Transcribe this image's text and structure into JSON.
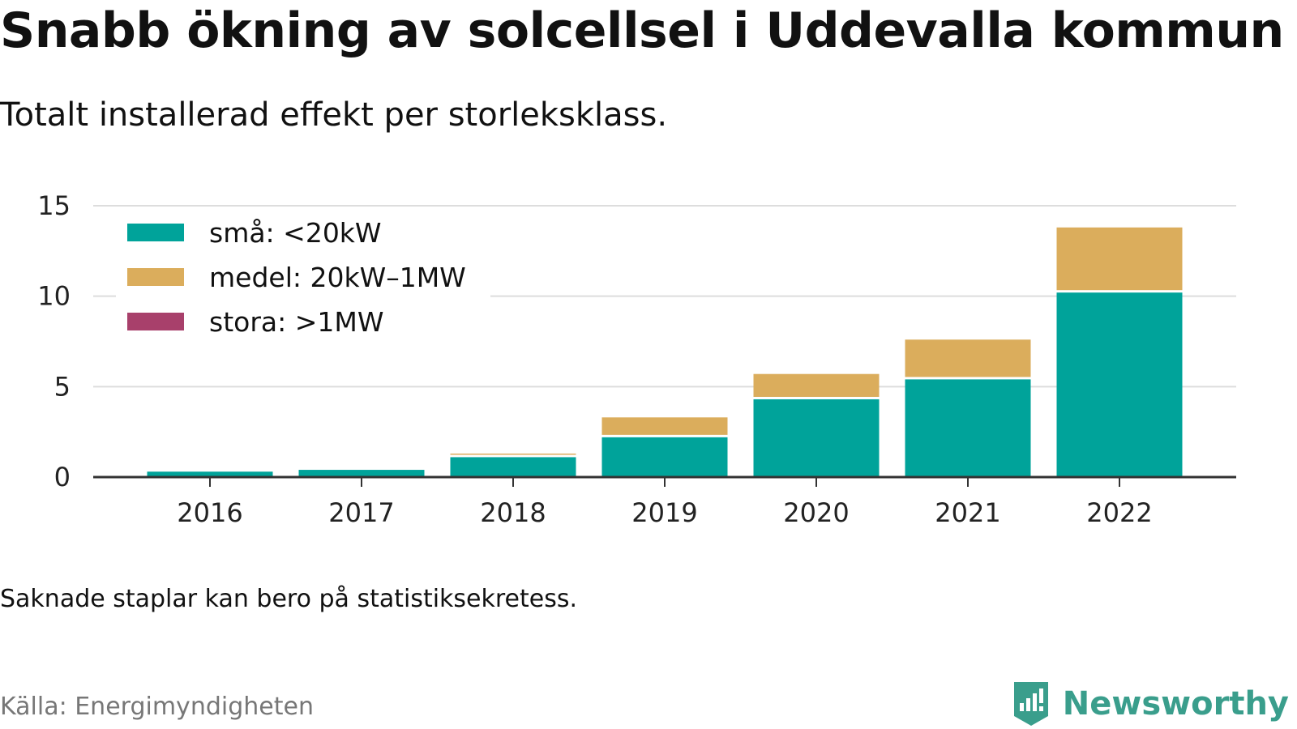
{
  "header": {
    "title": "Snabb ökning av solcellsel i Uddevalla kommun",
    "subtitle": "Totalt installerad effekt per storleksklass."
  },
  "footer": {
    "note": "Saknade staplar kan bero på statistiksekretess.",
    "source": "Källa: Energimyndigheten",
    "brand": "Newsworthy"
  },
  "colors": {
    "small": "#00a39a",
    "medium": "#dbad5c",
    "large": "#a8406b",
    "grid": "#dddddd",
    "axis": "#333333",
    "brand": "#3a9e8c"
  },
  "chart_data": {
    "type": "bar",
    "stacked": true,
    "categories": [
      "2016",
      "2017",
      "2018",
      "2019",
      "2020",
      "2021",
      "2022"
    ],
    "series": [
      {
        "name": "små: <20kW",
        "color": "#00a39a",
        "values": [
          0.3,
          0.4,
          1.1,
          2.2,
          4.3,
          5.4,
          10.2
        ]
      },
      {
        "name": "medel: 20kW–1MW",
        "color": "#dbad5c",
        "values": [
          0.0,
          0.0,
          0.2,
          1.1,
          1.4,
          2.2,
          3.6
        ]
      },
      {
        "name": "stora: >1MW",
        "color": "#a8406b",
        "values": [
          0,
          0,
          0,
          0,
          0,
          0,
          0
        ]
      }
    ],
    "ylim": [
      0,
      15
    ],
    "yticks": [
      0,
      5,
      10,
      15
    ],
    "grid": true,
    "legend_position": "top-left"
  }
}
